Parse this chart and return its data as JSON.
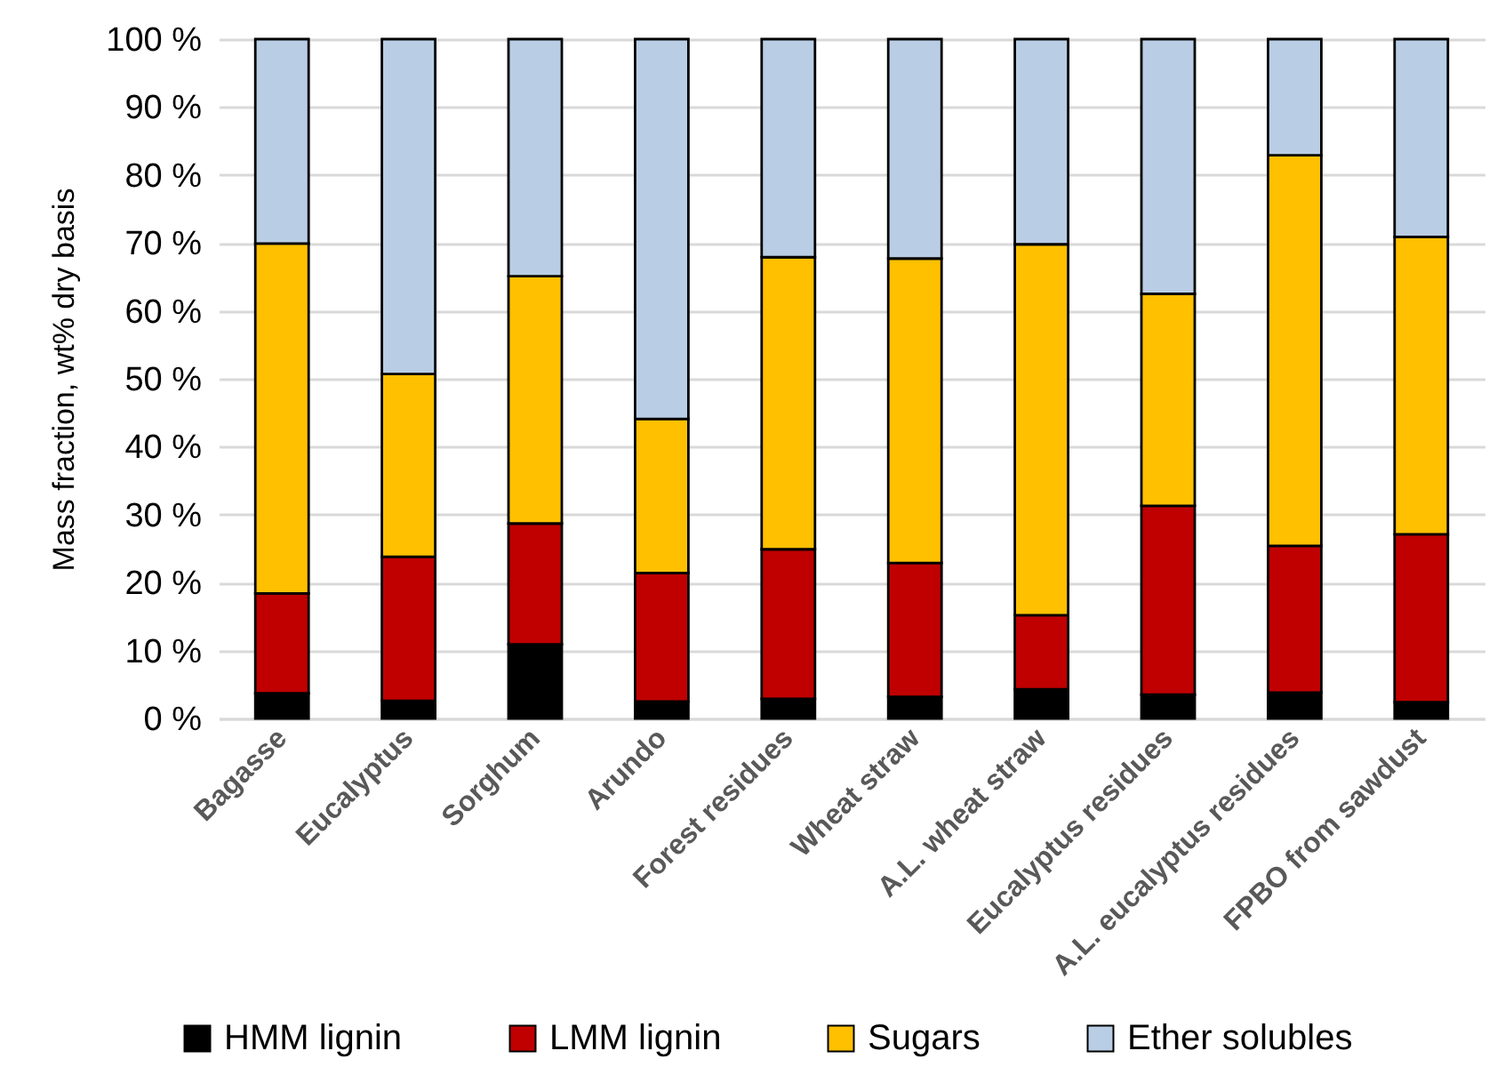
{
  "chart_data": {
    "type": "bar",
    "stacked": true,
    "ylabel": "Mass fraction, wt% dry basis",
    "categories": [
      "Bagasse",
      "Eucalyptus",
      "Sorghum",
      "Arundo",
      "Forest residues",
      "Wheat straw",
      "A.L. wheat straw",
      "Eucalyptus residues",
      "A.L. eucalyptus residues",
      "FPBO from sawdust"
    ],
    "series": [
      {
        "name": "HMM lignin",
        "color": "#000000",
        "values": [
          3.7,
          2.6,
          10.9,
          2.5,
          2.9,
          3.2,
          4.3,
          3.5,
          3.8,
          2.4
        ]
      },
      {
        "name": "LMM lignin",
        "color": "#c00000",
        "values": [
          14.7,
          21.2,
          17.8,
          18.9,
          22.0,
          19.7,
          10.9,
          27.8,
          21.6,
          24.7
        ]
      },
      {
        "name": "Sugars",
        "color": "#ffc000",
        "values": [
          51.5,
          26.9,
          36.4,
          22.7,
          43.0,
          44.8,
          54.6,
          31.2,
          57.5,
          43.8
        ]
      },
      {
        "name": "Ether solubles",
        "color": "#b9cde5",
        "values": [
          30.1,
          49.3,
          34.9,
          55.9,
          32.1,
          32.3,
          30.2,
          37.5,
          17.1,
          29.1
        ]
      }
    ],
    "ylim": [
      0,
      100
    ],
    "yticks": [
      {
        "value": 0,
        "label": "0 %"
      },
      {
        "value": 10,
        "label": "10 %"
      },
      {
        "value": 20,
        "label": "20 %"
      },
      {
        "value": 30,
        "label": "30 %"
      },
      {
        "value": 40,
        "label": "40 %"
      },
      {
        "value": 50,
        "label": "50 %"
      },
      {
        "value": 60,
        "label": "60 %"
      },
      {
        "value": 70,
        "label": "70 %"
      },
      {
        "value": 80,
        "label": "80 %"
      },
      {
        "value": 90,
        "label": "90 %"
      },
      {
        "value": 100,
        "label": "100 %"
      }
    ],
    "grid": "y",
    "legend": "bottom"
  }
}
